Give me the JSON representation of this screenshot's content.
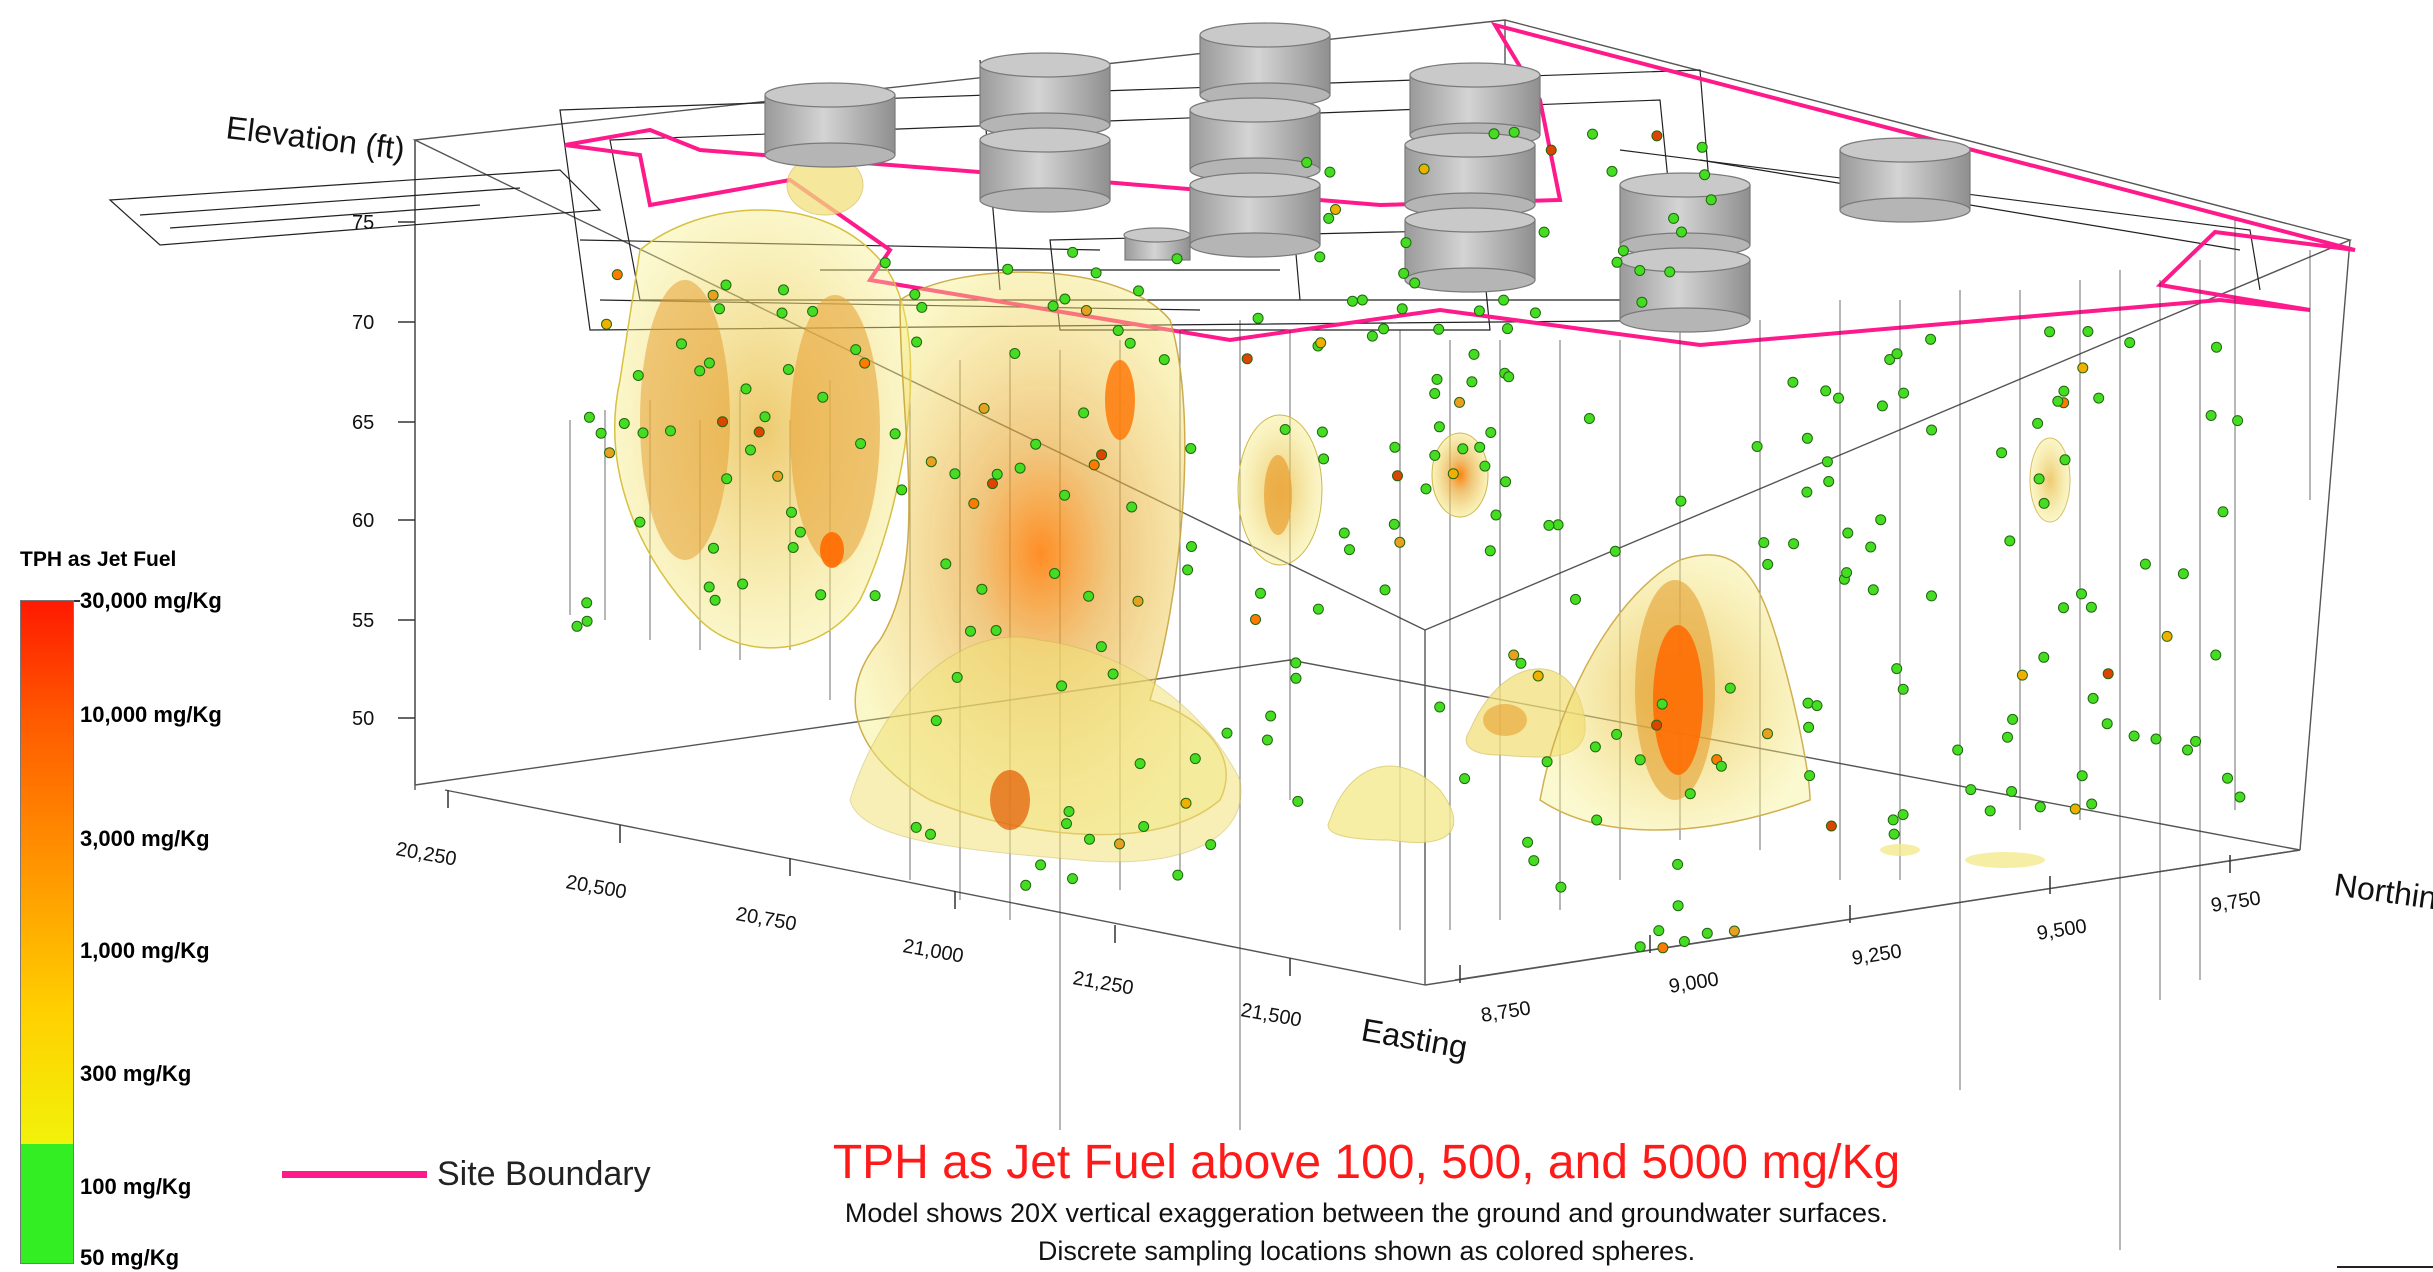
{
  "figure": {
    "title": "TPH as Jet Fuel above 100, 500, and 5000 mg/Kg",
    "subtitle_lines": [
      "Model shows 20X vertical exaggeration between the ground and groundwater surfaces.",
      "Discrete sampling locations shown as colored spheres."
    ]
  },
  "axes": {
    "elevation": {
      "title": "Elevation (ft)",
      "ticks": [
        "75",
        "70",
        "65",
        "60",
        "55",
        "50"
      ]
    },
    "easting": {
      "title": "Easting",
      "ticks": [
        "20,250",
        "20,500",
        "20,750",
        "21,000",
        "21,250",
        "21,500"
      ]
    },
    "northing": {
      "title": "Northing",
      "ticks": [
        "8,750",
        "9,000",
        "9,250",
        "9,500",
        "9,750"
      ]
    }
  },
  "legend": {
    "title": "TPH as Jet Fuel",
    "stops": [
      "30,000 mg/Kg",
      "10,000 mg/Kg",
      "3,000 mg/Kg",
      "1,000 mg/Kg",
      "300 mg/Kg",
      "100 mg/Kg",
      "50 mg/Kg"
    ],
    "colors": {
      "high": "#ff1a00",
      "mid_high": "#ff5a00",
      "mid": "#ff9500",
      "low": "#ffd000",
      "threshold": "#f2f20a",
      "below": "#33ee22"
    }
  },
  "site_boundary": {
    "label": "Site Boundary",
    "color": "#ff1a8c"
  },
  "colors": {
    "plume_outer": "#f3ec6a",
    "plume_mid": "#e6b23a",
    "plume_core": "#ff6a00",
    "sample_low": "#44dd22",
    "tank": "#a8a8a8"
  }
}
